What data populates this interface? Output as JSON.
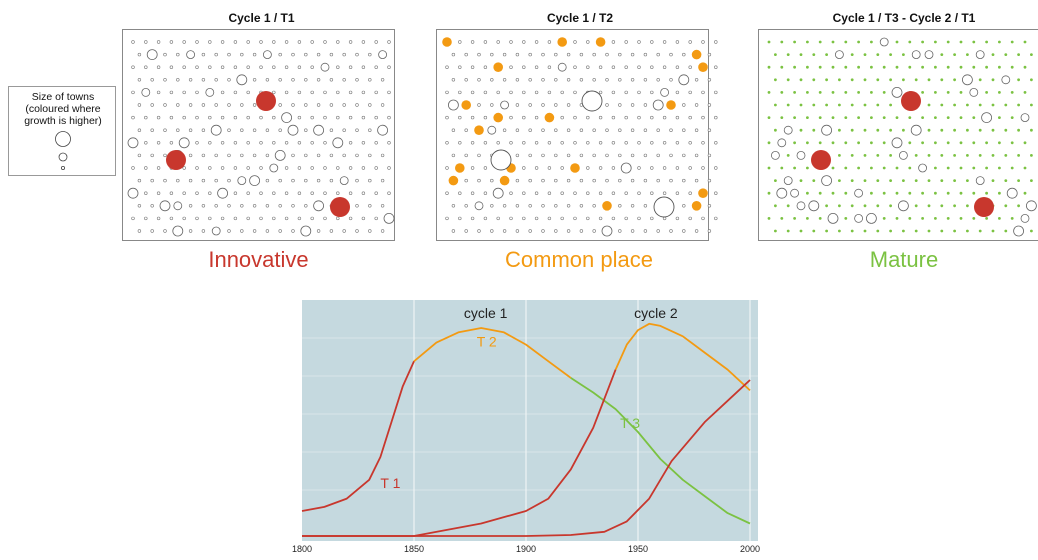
{
  "legend": {
    "lines": [
      "Size of towns",
      "(coloured where",
      "growth is higher)"
    ]
  },
  "panels": [
    {
      "title": "Cycle 1 / T1",
      "label": "Innovative",
      "label_color": "#c8372d"
    },
    {
      "title": "Cycle 1 / T2",
      "label": "Common place",
      "label_color": "#f39a12"
    },
    {
      "title": "Cycle 1 / T3 - Cycle 2 / T1",
      "label": "Mature",
      "label_color": "#7bc242"
    }
  ],
  "colors": {
    "innovative_red": "#c8372d",
    "common_orange": "#f39a12",
    "mature_green": "#7bc242",
    "chart_bg": "#c5d9df"
  },
  "chart_data": {
    "type": "line",
    "xlim": [
      1800,
      2000
    ],
    "x_ticks": [
      "1800",
      "1850",
      "1900",
      "1950",
      "2000"
    ],
    "annotations": [
      "cycle 1",
      "cycle 2"
    ],
    "grid": true,
    "series": [
      {
        "name": "T 1",
        "color": "#c8372d",
        "x": [
          1800,
          1810,
          1820,
          1830,
          1835,
          1840,
          1845,
          1850
        ],
        "y": [
          0.12,
          0.14,
          0.18,
          0.27,
          0.38,
          0.55,
          0.72,
          0.84
        ]
      },
      {
        "name": "T 2",
        "color": "#f39a12",
        "x": [
          1850,
          1860,
          1870,
          1880,
          1890,
          1900,
          1910,
          1920
        ],
        "y": [
          0.84,
          0.93,
          0.98,
          1.0,
          0.98,
          0.92,
          0.84,
          0.76
        ]
      },
      {
        "name": "T 3",
        "color": "#7bc242",
        "x": [
          1920,
          1930,
          1940,
          1950,
          1960,
          1970,
          1980,
          1990,
          2000
        ],
        "y": [
          0.76,
          0.69,
          0.61,
          0.5,
          0.37,
          0.27,
          0.19,
          0.11,
          0.06
        ]
      },
      {
        "name": "",
        "color": "#c8372d",
        "x": [
          1800,
          1850,
          1880,
          1900,
          1910,
          1920,
          1930,
          1940
        ],
        "y": [
          0.0,
          0.0,
          0.06,
          0.12,
          0.18,
          0.32,
          0.52,
          0.8
        ]
      },
      {
        "name": "",
        "color": "#f39a12",
        "x": [
          1940,
          1945,
          1950,
          1955,
          1960,
          1970,
          1980,
          1990,
          2000
        ],
        "y": [
          0.8,
          0.92,
          0.99,
          1.02,
          1.01,
          0.96,
          0.88,
          0.8,
          0.7
        ]
      },
      {
        "name": "",
        "color": "#c8372d",
        "x": [
          1800,
          1900,
          1920,
          1935,
          1945,
          1955,
          1965,
          1980,
          1990,
          2000
        ],
        "y": [
          0.0,
          0.0,
          0.005,
          0.02,
          0.07,
          0.18,
          0.36,
          0.55,
          0.65,
          0.75
        ]
      }
    ],
    "labels": [
      {
        "text": "T 1",
        "x": 1835,
        "y": 0.23,
        "color": "#c8372d"
      },
      {
        "text": "T 2",
        "x": 1878,
        "y": 0.91,
        "color": "#f39a12"
      },
      {
        "text": "T 3",
        "x": 1942,
        "y": 0.52,
        "color": "#7bc242"
      }
    ]
  }
}
